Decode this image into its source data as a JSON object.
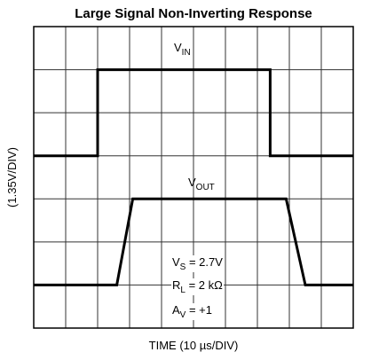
{
  "chart_data": {
    "type": "line",
    "title": "Large Signal Non-Inverting Response",
    "x_label": "TIME (10 µs/DIV)",
    "y_label": "(1.35V/DIV)",
    "xlim": [
      0,
      10
    ],
    "ylim": [
      0,
      7
    ],
    "xticks": [
      0,
      1,
      2,
      3,
      4,
      5,
      6,
      7,
      8,
      9,
      10
    ],
    "yticks": [
      0,
      1,
      2,
      3,
      4,
      5,
      6,
      7
    ],
    "grid": true,
    "series": [
      {
        "color": "#000000",
        "x": [
          0,
          2,
          2,
          7.4,
          7.4,
          10
        ],
        "values": [
          4,
          4,
          6,
          6,
          4,
          4
        ]
      },
      {
        "color": "#000000",
        "x": [
          0,
          2.6,
          3.1,
          7.9,
          8.5,
          10
        ],
        "values": [
          1,
          1,
          3,
          3,
          1,
          1
        ]
      }
    ],
    "annotations": [
      {
        "base": "V",
        "sub": "IN",
        "rest": ""
      },
      {
        "base": "V",
        "sub": "OUT",
        "rest": ""
      },
      {
        "base": "V",
        "sub": "S",
        "rest": " = 2.7V"
      },
      {
        "base": "R",
        "sub": "L",
        "rest": " = 2 kΩ"
      },
      {
        "base": "A",
        "sub": "V",
        "rest": " = +1"
      }
    ]
  }
}
